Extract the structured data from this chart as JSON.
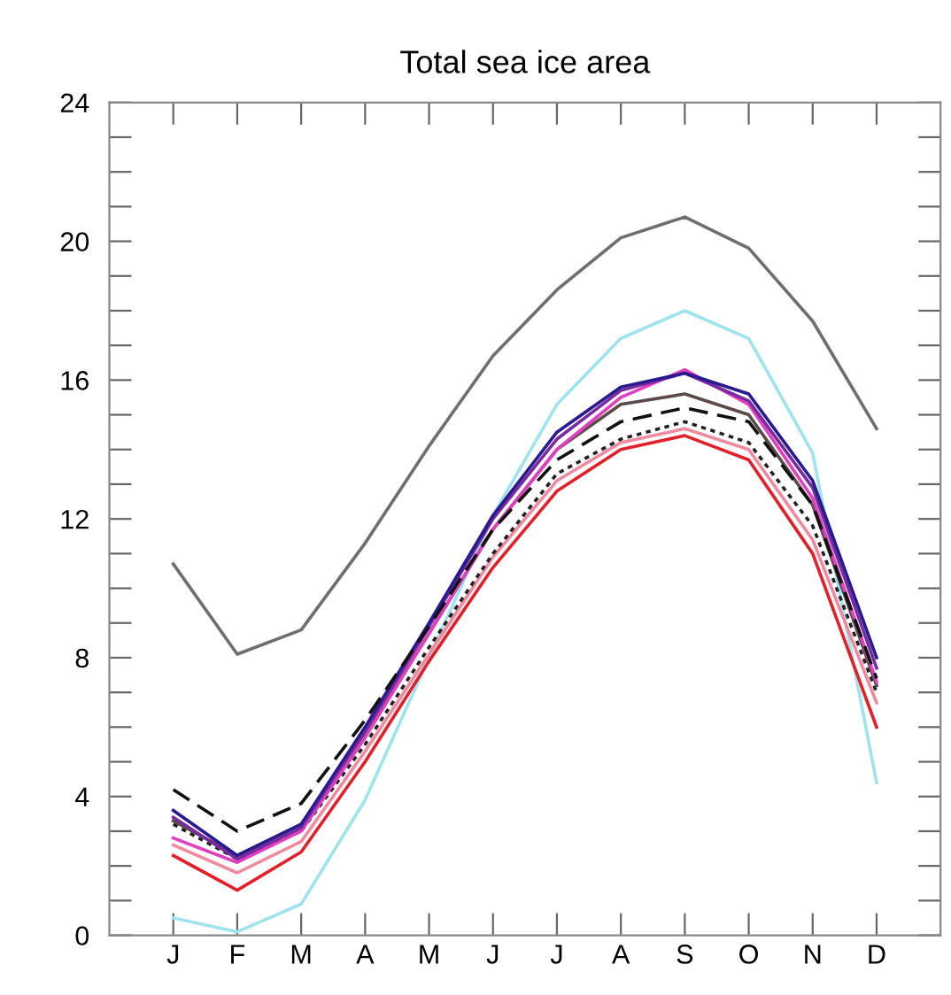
{
  "chart_data": {
    "type": "line",
    "title": "Total sea ice area",
    "categories": [
      "J",
      "F",
      "M",
      "A",
      "M",
      "J",
      "J",
      "A",
      "S",
      "O",
      "N",
      "D"
    ],
    "series": [
      {
        "color": "#6e6e6e",
        "line_style": "solid",
        "values": [
          10.7,
          8.1,
          8.8,
          11.3,
          14.1,
          16.7,
          18.6,
          20.1,
          20.7,
          19.8,
          17.7,
          14.6
        ]
      },
      {
        "color": "#9fe3ec",
        "line_style": "solid",
        "values": [
          0.5,
          0.1,
          0.9,
          3.9,
          8.0,
          12.1,
          15.3,
          17.2,
          18.0,
          17.2,
          13.9,
          4.4
        ]
      },
      {
        "color": "#e0202a",
        "line_style": "solid",
        "values": [
          2.3,
          1.3,
          2.4,
          5.0,
          7.9,
          10.6,
          12.8,
          14.0,
          14.4,
          13.7,
          11.0,
          6.0
        ]
      },
      {
        "color": "#f08aa0",
        "line_style": "solid",
        "values": [
          2.6,
          1.8,
          2.7,
          5.3,
          8.1,
          10.9,
          13.1,
          14.2,
          14.6,
          14.0,
          11.4,
          6.7
        ]
      },
      {
        "color": "#222222",
        "line_style": "dotted",
        "values": [
          3.2,
          2.2,
          3.0,
          5.5,
          8.3,
          11.0,
          13.3,
          14.3,
          14.8,
          14.2,
          11.8,
          7.0
        ]
      },
      {
        "color": "#5a4a4a",
        "line_style": "solid",
        "values": [
          3.3,
          2.3,
          3.2,
          5.8,
          8.7,
          11.7,
          14.0,
          15.3,
          15.6,
          15.0,
          12.4,
          7.2
        ]
      },
      {
        "color": "#e040c0",
        "line_style": "solid",
        "values": [
          2.8,
          2.1,
          3.0,
          5.7,
          8.7,
          11.7,
          14.0,
          15.5,
          16.3,
          15.3,
          12.6,
          7.3
        ]
      },
      {
        "color": "#7a2aa0",
        "line_style": "solid",
        "values": [
          3.4,
          2.2,
          3.1,
          5.9,
          8.9,
          12.0,
          14.3,
          15.7,
          16.2,
          15.4,
          12.9,
          7.7
        ]
      },
      {
        "color": "#2a1a90",
        "line_style": "solid",
        "values": [
          3.6,
          2.3,
          3.2,
          6.0,
          9.0,
          12.1,
          14.5,
          15.8,
          16.2,
          15.6,
          13.1,
          8.0
        ]
      },
      {
        "color": "#111111",
        "line_style": "dashed",
        "values": [
          4.2,
          3.0,
          3.8,
          6.2,
          8.9,
          11.7,
          13.7,
          14.8,
          15.2,
          14.8,
          12.4,
          7.4
        ]
      }
    ],
    "ylim": [
      0,
      24
    ],
    "yticks": [
      0,
      {
        "value": 1,
        "label": null
      },
      {
        "value": 2,
        "label": null
      },
      {
        "value": 3,
        "label": null
      },
      4,
      {
        "value": 5,
        "label": null
      },
      {
        "value": 6,
        "label": null
      },
      {
        "value": 7,
        "label": null
      },
      8,
      {
        "value": 9,
        "label": null
      },
      {
        "value": 10,
        "label": null
      },
      {
        "value": 11,
        "label": null
      },
      12,
      {
        "value": 13,
        "label": null
      },
      {
        "value": 14,
        "label": null
      },
      {
        "value": 15,
        "label": null
      },
      16,
      {
        "value": 17,
        "label": null
      },
      {
        "value": 18,
        "label": null
      },
      {
        "value": 19,
        "label": null
      },
      20,
      {
        "value": 21,
        "label": null
      },
      {
        "value": 22,
        "label": null
      },
      {
        "value": 23,
        "label": null
      },
      24
    ],
    "grid": false,
    "legend": false
  }
}
